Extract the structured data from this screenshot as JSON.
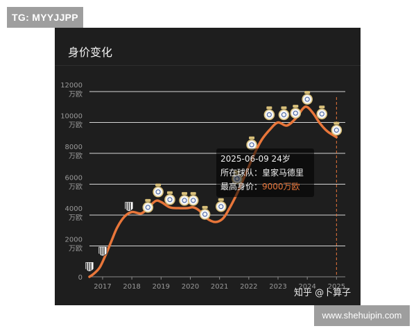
{
  "badges": {
    "telegram": "TG: MYYJJPP",
    "site": "www.shehuipin.com"
  },
  "card": {
    "title": "身价变化",
    "watermark": "知乎 @卜算子"
  },
  "chart_data": {
    "type": "line",
    "title": "身价变化",
    "xlabel": "",
    "ylabel": "",
    "x_ticks": [
      "2017",
      "2018",
      "2019",
      "2020",
      "2021",
      "2022",
      "2023",
      "2024",
      "2025"
    ],
    "y_ticks": [
      {
        "value": 0,
        "label": "0",
        "unit": ""
      },
      {
        "value": 2000,
        "label": "2000",
        "unit": "万欧"
      },
      {
        "value": 4000,
        "label": "4000",
        "unit": "万欧"
      },
      {
        "value": 6000,
        "label": "6000",
        "unit": "万欧"
      },
      {
        "value": 8000,
        "label": "8000",
        "unit": "万欧"
      },
      {
        "value": 10000,
        "label": "10000",
        "unit": "万欧"
      },
      {
        "value": 12000,
        "label": "12000",
        "unit": "万欧"
      }
    ],
    "ylim": [
      0,
      12000
    ],
    "xlim": [
      2016.55,
      2025.3
    ],
    "grid": true,
    "line_color": "#e8763a",
    "curve": [
      [
        2016.55,
        0
      ],
      [
        2016.7,
        200
      ],
      [
        2016.9,
        600
      ],
      [
        2017.1,
        1400
      ],
      [
        2017.3,
        2300
      ],
      [
        2017.5,
        3200
      ],
      [
        2017.75,
        3900
      ],
      [
        2018.0,
        4200
      ],
      [
        2018.3,
        4100
      ],
      [
        2018.5,
        4350
      ],
      [
        2018.8,
        4900
      ],
      [
        2019.0,
        4850
      ],
      [
        2019.3,
        4500
      ],
      [
        2019.6,
        4450
      ],
      [
        2019.9,
        4450
      ],
      [
        2020.1,
        4500
      ],
      [
        2020.3,
        4300
      ],
      [
        2020.55,
        3800
      ],
      [
        2020.85,
        3550
      ],
      [
        2021.1,
        3750
      ],
      [
        2021.3,
        4300
      ],
      [
        2021.6,
        5400
      ],
      [
        2021.9,
        6700
      ],
      [
        2022.2,
        8000
      ],
      [
        2022.45,
        8900
      ],
      [
        2022.75,
        9600
      ],
      [
        2023.0,
        10000
      ],
      [
        2023.3,
        9800
      ],
      [
        2023.6,
        10250
      ],
      [
        2023.85,
        10900
      ],
      [
        2024.0,
        11000
      ],
      [
        2024.2,
        10600
      ],
      [
        2024.45,
        9900
      ],
      [
        2024.7,
        9400
      ],
      [
        2025.0,
        9050
      ]
    ],
    "markers": [
      {
        "x": 2016.55,
        "y": 600,
        "club": "juventus"
      },
      {
        "x": 2017.0,
        "y": 1600,
        "club": "juventus"
      },
      {
        "x": 2017.9,
        "y": 4500,
        "club": "juventus"
      },
      {
        "x": 2018.55,
        "y": 4500,
        "club": "real-madrid"
      },
      {
        "x": 2018.9,
        "y": 5500,
        "club": "real-madrid"
      },
      {
        "x": 2019.3,
        "y": 5000,
        "club": "real-madrid"
      },
      {
        "x": 2019.8,
        "y": 4950,
        "club": "real-madrid"
      },
      {
        "x": 2020.1,
        "y": 4950,
        "club": "real-madrid"
      },
      {
        "x": 2020.5,
        "y": 4050,
        "club": "real-madrid"
      },
      {
        "x": 2021.05,
        "y": 4550,
        "club": "real-madrid"
      },
      {
        "x": 2021.6,
        "y": 6350,
        "club": "real-madrid"
      },
      {
        "x": 2022.1,
        "y": 8550,
        "club": "real-madrid"
      },
      {
        "x": 2022.7,
        "y": 10500,
        "club": "real-madrid"
      },
      {
        "x": 2023.2,
        "y": 10500,
        "club": "real-madrid"
      },
      {
        "x": 2023.6,
        "y": 10600,
        "club": "real-madrid"
      },
      {
        "x": 2024.0,
        "y": 11500,
        "club": "real-madrid"
      },
      {
        "x": 2024.5,
        "y": 10550,
        "club": "real-madrid"
      },
      {
        "x": 2025.0,
        "y": 9500,
        "club": "real-madrid"
      }
    ],
    "marker_colors": {
      "real-madrid": "#d9c07a",
      "juventus": "#ffffff"
    },
    "cursor": {
      "x": 2025.0,
      "color": "#e8763a"
    },
    "tooltip": {
      "date_line": "2025-06-09 24岁",
      "team_label": "所在球队：",
      "team_value": "皇家马德里",
      "value_label": "最高身价：",
      "value_value": "9000万欧",
      "value_color": "#e8763a"
    }
  }
}
